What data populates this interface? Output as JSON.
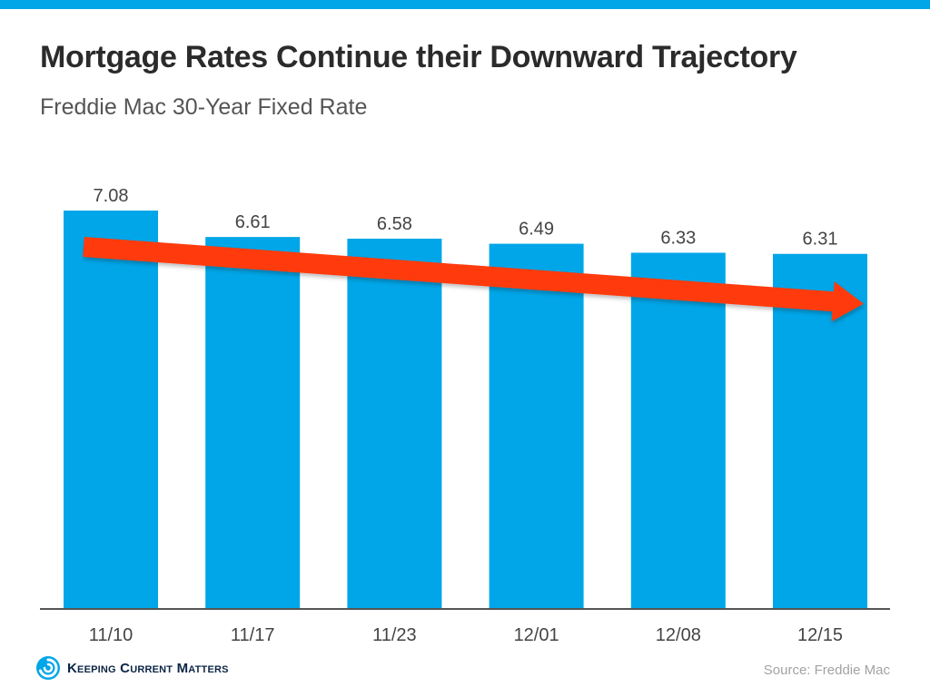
{
  "header": {
    "title": "Mortgage Rates Continue their Downward Trajectory",
    "subtitle": "Freddie Mac 30-Year Fixed Rate"
  },
  "footer": {
    "brand": "Keeping Current Matters",
    "source": "Source: Freddie Mac"
  },
  "colors": {
    "accent": "#00a6e8",
    "bar": "#00a6e8",
    "trend_arrow": "#ff3b0f",
    "title_text": "#2b2b2b",
    "axis_text": "#444444"
  },
  "icons": {
    "logo": "circular-swirl-logo-icon",
    "trend": "downward-trend-arrow"
  },
  "chart_data": {
    "type": "bar",
    "title": "Mortgage Rates Continue their Downward Trajectory",
    "subtitle": "Freddie Mac 30-Year Fixed Rate",
    "categories": [
      "11/10",
      "11/17",
      "11/23",
      "12/01",
      "12/08",
      "12/15"
    ],
    "values": [
      7.08,
      6.61,
      6.58,
      6.49,
      6.33,
      6.31
    ],
    "data_labels": [
      "7.08",
      "6.61",
      "6.58",
      "6.49",
      "6.33",
      "6.31"
    ],
    "xlabel": "",
    "ylabel": "",
    "ylim": [
      0,
      7.08
    ],
    "grid": false,
    "legend": "none",
    "annotation": "downward trend arrow"
  }
}
